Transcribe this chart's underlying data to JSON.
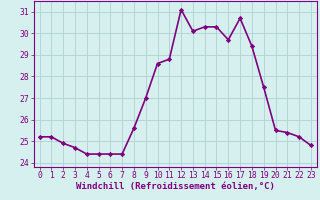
{
  "hours": [
    0,
    1,
    2,
    3,
    4,
    5,
    6,
    7,
    8,
    9,
    10,
    11,
    12,
    13,
    14,
    15,
    16,
    17,
    18,
    19,
    20,
    21,
    22,
    23
  ],
  "values": [
    25.2,
    25.2,
    24.9,
    24.7,
    24.4,
    24.4,
    24.4,
    24.4,
    25.6,
    27.0,
    28.6,
    28.8,
    31.1,
    30.1,
    30.3,
    30.3,
    29.7,
    30.7,
    29.4,
    27.5,
    25.5,
    25.4,
    25.2,
    24.8
  ],
  "line_color": "#800080",
  "marker": "D",
  "marker_size": 2.2,
  "bg_color": "#d6f0f0",
  "grid_color": "#b0d0d0",
  "xlabel": "Windchill (Refroidissement éolien,°C)",
  "ylim": [
    23.8,
    31.5
  ],
  "yticks": [
    24,
    25,
    26,
    27,
    28,
    29,
    30,
    31
  ],
  "xticks": [
    0,
    1,
    2,
    3,
    4,
    5,
    6,
    7,
    8,
    9,
    10,
    11,
    12,
    13,
    14,
    15,
    16,
    17,
    18,
    19,
    20,
    21,
    22,
    23
  ],
  "label_color": "#800080",
  "tick_color": "#800080",
  "spine_color": "#800080",
  "linewidth": 1.2,
  "xlabel_fontsize": 6.5,
  "tick_fontsize": 5.8
}
